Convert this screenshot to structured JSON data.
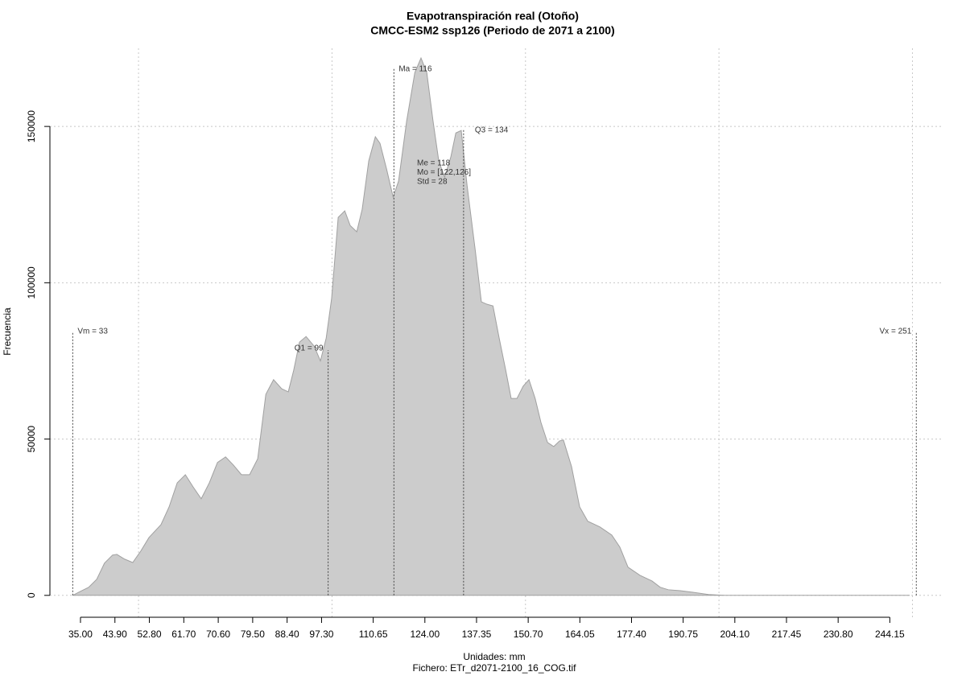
{
  "chart_data": {
    "type": "area",
    "title": "Evapotranspiración real (Otoño)",
    "subtitle": "CMCC-ESM2 ssp126 (Periodo de 2071 a 2100)",
    "x_label": "Unidades: mm",
    "caption": "Fichero: ETr_d2071-2100_16_COG.tif",
    "y_label": "Frecuencia",
    "color": "#cccccc",
    "xlim": [
      27.1,
      257.6
    ],
    "ylim": [
      -7000,
      175000
    ],
    "xticks": [
      {
        "value": 35,
        "label": "35.00"
      },
      {
        "value": 43.9,
        "label": "43.90"
      },
      {
        "value": 52.8,
        "label": "52.80"
      },
      {
        "value": 61.7,
        "label": "61.70"
      },
      {
        "value": 70.6,
        "label": "70.60"
      },
      {
        "value": 79.5,
        "label": "79.50"
      },
      {
        "value": 88.4,
        "label": "88.40"
      },
      {
        "value": 97.3,
        "label": "97.30"
      },
      {
        "value": 110.65,
        "label": "110.65"
      },
      {
        "value": 124,
        "label": "124.00"
      },
      {
        "value": 137.35,
        "label": "137.35"
      },
      {
        "value": 150.7,
        "label": "150.70"
      },
      {
        "value": 164.05,
        "label": "164.05"
      },
      {
        "value": 177.4,
        "label": "177.40"
      },
      {
        "value": 190.75,
        "label": "190.75"
      },
      {
        "value": 204.1,
        "label": "204.10"
      },
      {
        "value": 217.45,
        "label": "217.45"
      },
      {
        "value": 230.8,
        "label": "230.80"
      },
      {
        "value": 244.15,
        "label": "244.15"
      }
    ],
    "xgrid": [
      50,
      100,
      150,
      200,
      250
    ],
    "yticks": [
      0,
      50000,
      100000,
      150000
    ],
    "grid": true,
    "x": [
      33,
      35,
      37.1,
      39.2,
      41.2,
      43.3,
      44.4,
      46.4,
      48.5,
      50.6,
      52.7,
      55.8,
      57.9,
      60.0,
      62.1,
      64.1,
      66.2,
      68.3,
      70.4,
      72.5,
      74.5,
      76.6,
      78.7,
      80.8,
      82.9,
      84.9,
      87.0,
      88.7,
      90.1,
      91.6,
      93.3,
      95.4,
      97.0,
      98.5,
      99.9,
      101.6,
      103.3,
      104.7,
      106.4,
      107.8,
      109.5,
      111.2,
      112.4,
      114.1,
      115.8,
      117.2,
      119.3,
      121.4,
      123.0,
      124.5,
      126.1,
      127.6,
      129.1,
      130.7,
      132.0,
      133.4,
      134.9,
      137.0,
      138.6,
      140.1,
      141.6,
      143.2,
      144.9,
      146.3,
      147.8,
      149.4,
      150.9,
      152.5,
      154.0,
      155.7,
      157.3,
      158.8,
      159.8,
      161.9,
      164.0,
      166.1,
      169.2,
      172.3,
      174.4,
      176.5,
      179.6,
      182.7,
      184.8,
      186.9,
      190.0,
      193.1,
      197.3,
      201.5,
      205.6,
      249.3
    ],
    "values": [
      0,
      1290,
      2570,
      5150,
      10300,
      12900,
      13100,
      11600,
      10500,
      14200,
      18500,
      22600,
      28300,
      36000,
      38600,
      34700,
      30900,
      36000,
      42500,
      44300,
      41700,
      38600,
      38600,
      43700,
      64300,
      69000,
      66100,
      65100,
      72000,
      81000,
      82800,
      79700,
      75000,
      82300,
      95000,
      120900,
      123000,
      118300,
      116300,
      123500,
      139000,
      146700,
      144600,
      136400,
      127400,
      132500,
      151800,
      167200,
      171900,
      167200,
      151800,
      138900,
      133800,
      140200,
      147900,
      148700,
      131200,
      110600,
      93900,
      93100,
      92600,
      82300,
      72000,
      63000,
      63000,
      66900,
      69000,
      63000,
      55300,
      48900,
      47600,
      49400,
      49700,
      41200,
      28300,
      23700,
      21900,
      19300,
      15400,
      9000,
      6400,
      4600,
      2600,
      1800,
      1500,
      1000,
      260,
      0,
      0,
      0
    ],
    "annotations": [
      {
        "label": "Vm = 33",
        "x": 33
      },
      {
        "label": "Q1 = 99",
        "x": 99
      },
      {
        "label": "Ma = 116",
        "x": 116
      },
      {
        "label": "Q3 = 134",
        "x": 134
      },
      {
        "label": "Vx = 251",
        "x": 251
      }
    ],
    "stats": [
      "Me = 118",
      "Mo = [122,126]",
      "Std = 28"
    ]
  }
}
